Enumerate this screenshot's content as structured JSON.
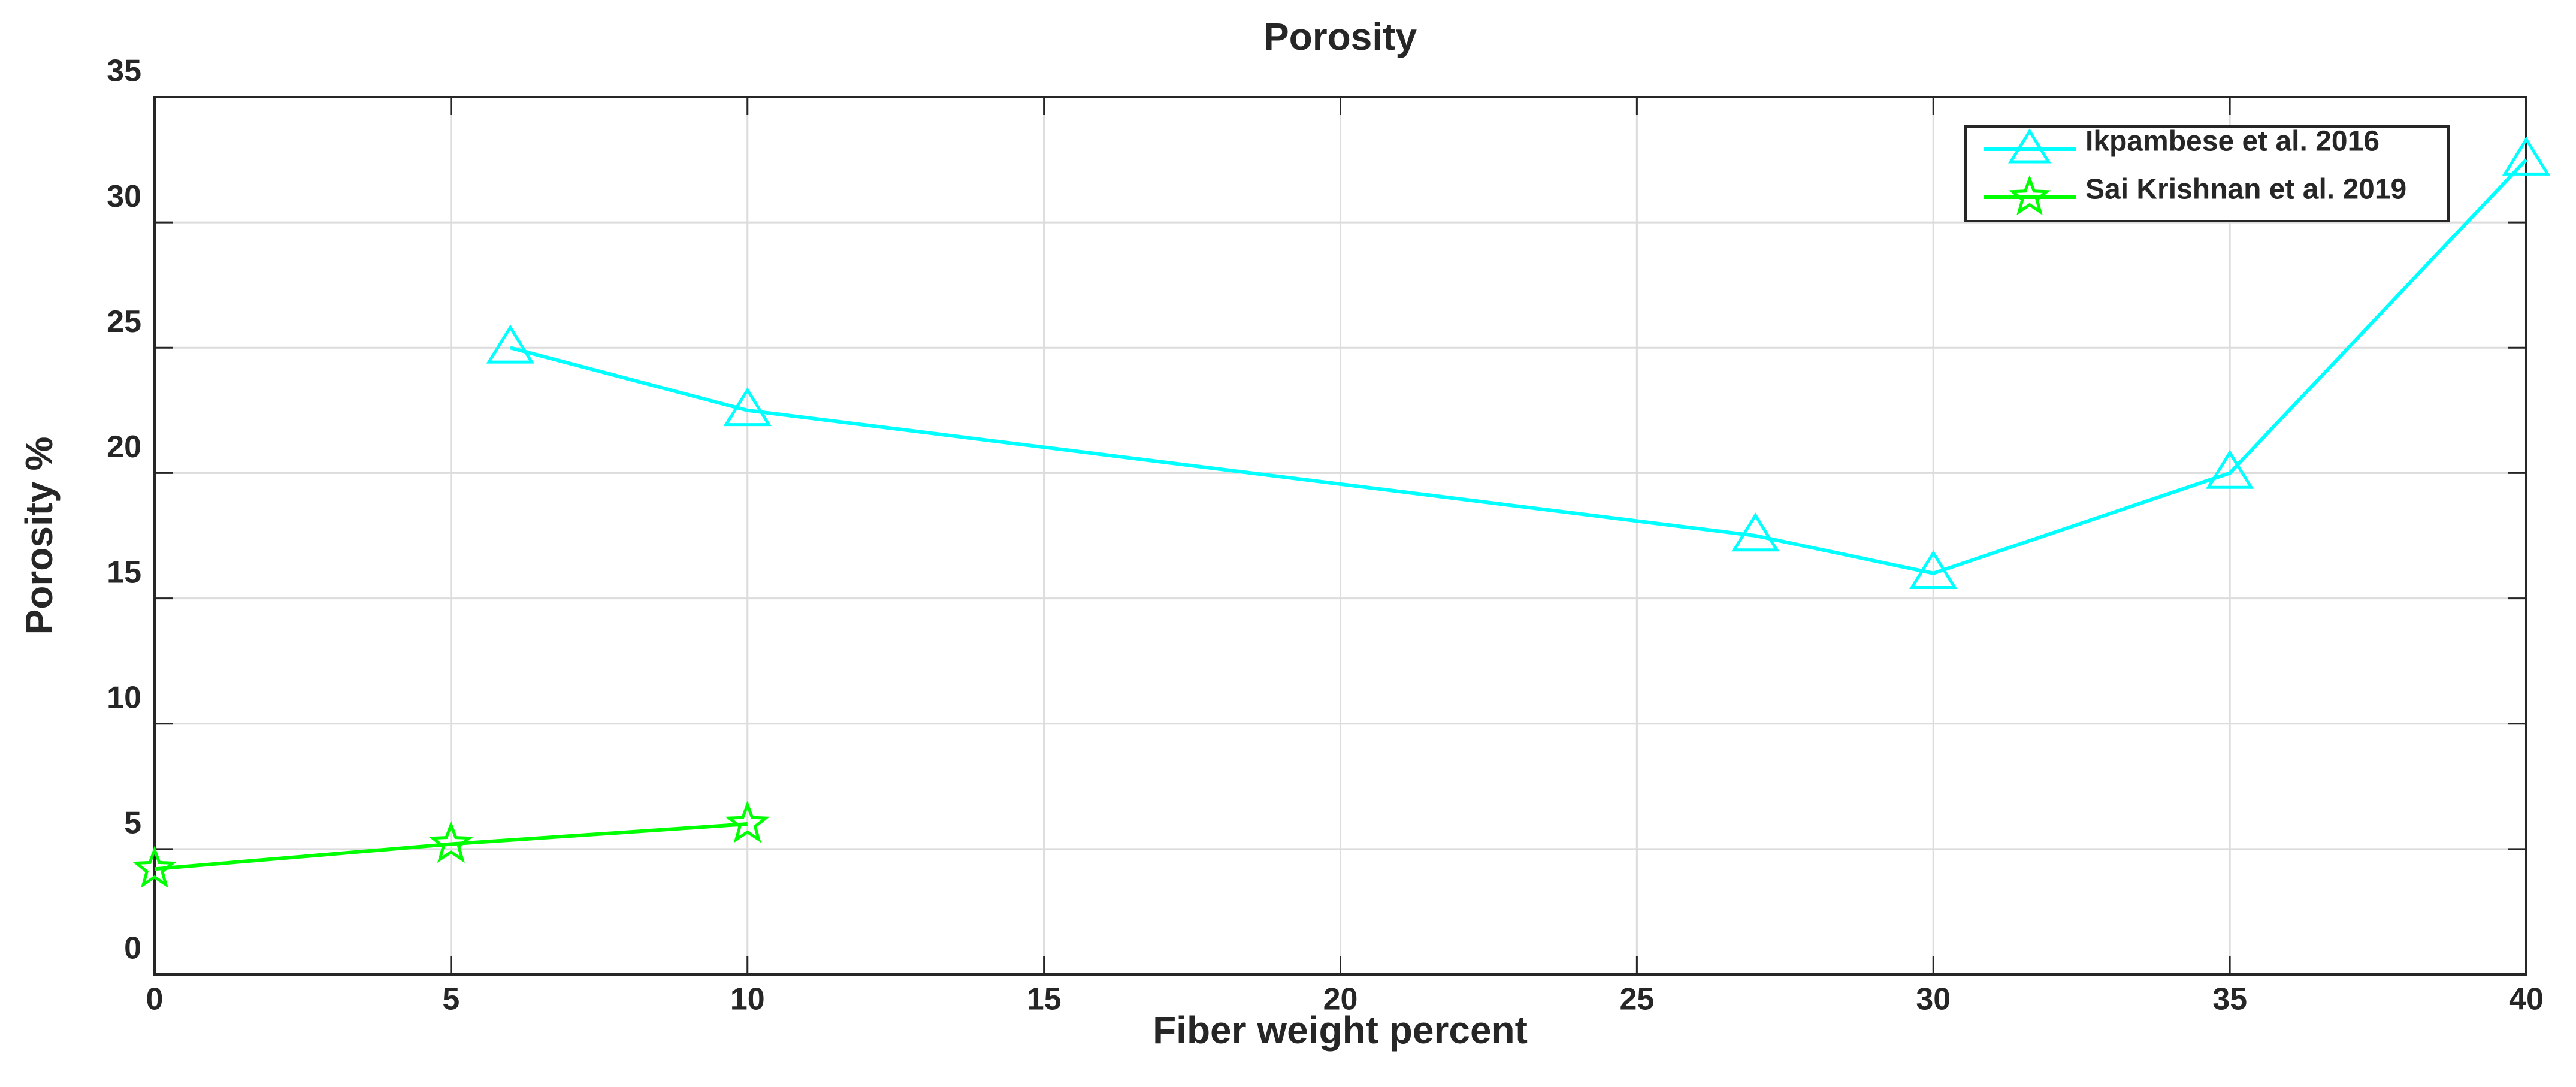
{
  "chart_data": {
    "type": "line",
    "title": "Porosity",
    "x_label": "Fiber weight percent",
    "y_label": "Porosity %",
    "series": [
      {
        "name": "Ikpambese et al. 2016",
        "color": "#00ffff",
        "marker": "triangle",
        "x": [
          6,
          10,
          27,
          30,
          35,
          40
        ],
        "values": [
          25,
          22.5,
          17.5,
          16,
          20,
          32.5
        ]
      },
      {
        "name": "Sai Krishnan et al. 2019",
        "color": "#00ff00",
        "marker": "star",
        "x": [
          0,
          5,
          10
        ],
        "values": [
          4.2,
          5.2,
          6
        ]
      }
    ],
    "xlim": [
      0,
      40
    ],
    "xticks": [
      0,
      5,
      10,
      15,
      20,
      25,
      30,
      35,
      40
    ],
    "ylim": [
      0,
      35
    ],
    "yticks": [
      0,
      5,
      10,
      15,
      20,
      25,
      30,
      35
    ],
    "grid": true,
    "legend": "northeast"
  }
}
